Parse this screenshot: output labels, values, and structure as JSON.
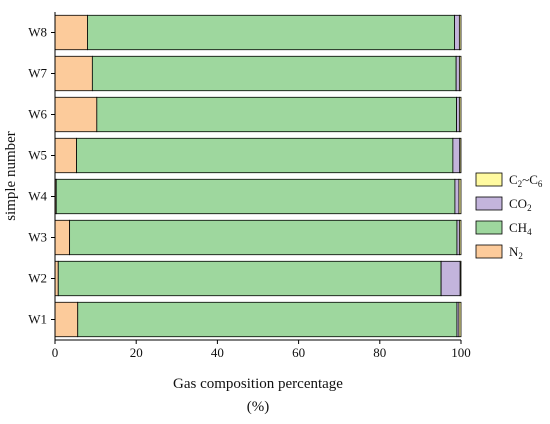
{
  "chart_data": {
    "type": "bar",
    "orientation": "horizontal",
    "stacked": true,
    "categories": [
      "W1",
      "W2",
      "W3",
      "W4",
      "W5",
      "W6",
      "W7",
      "W8"
    ],
    "series": [
      {
        "name": "N2",
        "name_main": "N",
        "name_sub": "2",
        "color": "#FCCB9B",
        "values": [
          5.6,
          0.8,
          3.6,
          0.3,
          5.3,
          10.3,
          9.2,
          8.0
        ]
      },
      {
        "name": "CH4",
        "name_main": "CH",
        "name_sub": "4",
        "color": "#9ED79E",
        "values": [
          93.4,
          94.3,
          95.4,
          98.2,
          92.7,
          88.6,
          89.6,
          90.4
        ]
      },
      {
        "name": "CO2",
        "name_main": "CO",
        "name_sub": "2",
        "color": "#C3B4DC",
        "values": [
          0.5,
          4.7,
          0.6,
          1.0,
          1.7,
          0.7,
          0.8,
          1.2
        ]
      },
      {
        "name": "C2~C6",
        "name_main": "C",
        "name_sub": "2",
        "name_mid": "~C",
        "name_sub2": "6",
        "color": "#FFFAA0",
        "values": [
          0.5,
          0.2,
          0.4,
          0.5,
          0.3,
          0.4,
          0.4,
          0.4
        ]
      }
    ],
    "xlabel": "Gas composition percentage",
    "xlabel_unit": "(%)",
    "ylabel": "simple number",
    "xlim": [
      0,
      100
    ],
    "xticks": [
      0,
      20,
      40,
      60,
      80,
      100
    ],
    "legend_position": "right",
    "grid": false
  }
}
